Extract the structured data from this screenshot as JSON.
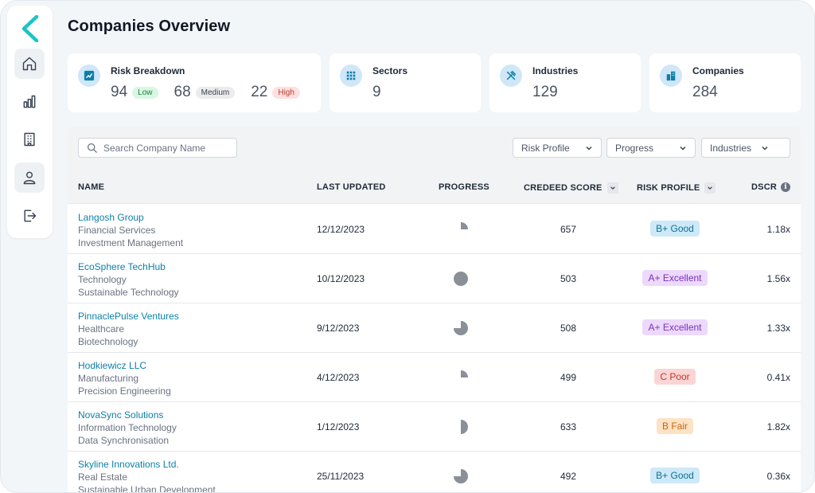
{
  "page": {
    "title": "Companies Overview"
  },
  "colors": {
    "accent": "#0e7fa8",
    "logo": "#1cc3c6",
    "icon_bg": "#cfe7f8"
  },
  "sidebar": {
    "items": [
      {
        "name": "home",
        "icon": "home-icon",
        "active": true
      },
      {
        "name": "analytics",
        "icon": "bar-chart-icon",
        "active": false
      },
      {
        "name": "companies",
        "icon": "building-icon",
        "active": false
      },
      {
        "name": "profile",
        "icon": "user-icon",
        "active": true
      },
      {
        "name": "logout",
        "icon": "logout-icon",
        "active": false
      }
    ]
  },
  "summary": {
    "risk": {
      "label": "Risk Breakdown",
      "low_count": "94",
      "low_label": "Low",
      "medium_count": "68",
      "medium_label": "Medium",
      "high_count": "22",
      "high_label": "High"
    },
    "sectors": {
      "label": "Sectors",
      "value": "9"
    },
    "industries": {
      "label": "Industries",
      "value": "129"
    },
    "companies": {
      "label": "Companies",
      "value": "284"
    }
  },
  "filters": {
    "search_placeholder": "Search Company Name",
    "risk_profile": "Risk Profile",
    "progress": "Progress",
    "industries": "Industries"
  },
  "table": {
    "columns": {
      "name": "NAME",
      "last_updated": "LAST UPDATED",
      "progress": "PROGRESS",
      "score": "CREDEED SCORE",
      "risk": "RISK PROFILE",
      "dscr": "DSCR"
    },
    "rows": [
      {
        "name": "Langosh Group",
        "sector": "Financial Services",
        "industry": "Investment Management",
        "last_updated": "12/12/2023",
        "progress": 0.25,
        "score": "657",
        "risk": "B+ Good",
        "risk_bg": "#cde9f7",
        "risk_fg": "#0e6f94",
        "dscr": "1.18x"
      },
      {
        "name": "EcoSphere TechHub",
        "sector": "Technology",
        "industry": "Sustainable Technology",
        "last_updated": "10/12/2023",
        "progress": 1.0,
        "score": "503",
        "risk": "A+ Excellent",
        "risk_bg": "#ecd9fb",
        "risk_fg": "#7b2fbf",
        "dscr": "1.56x"
      },
      {
        "name": "PinnaclePulse Ventures",
        "sector": "Healthcare",
        "industry": "Biotechnology",
        "last_updated": "9/12/2023",
        "progress": 0.75,
        "score": "508",
        "risk": "A+ Excellent",
        "risk_bg": "#ecd9fb",
        "risk_fg": "#7b2fbf",
        "dscr": "1.33x"
      },
      {
        "name": "Hodkiewicz LLC",
        "sector": "Manufacturing",
        "industry": "Precision Engineering",
        "last_updated": "4/12/2023",
        "progress": 0.25,
        "score": "499",
        "risk": "C Poor",
        "risk_bg": "#fbd5d5",
        "risk_fg": "#c0392b",
        "dscr": "0.41x"
      },
      {
        "name": "NovaSync Solutions",
        "sector": "Information Technology",
        "industry": "Data Synchronisation",
        "last_updated": "1/12/2023",
        "progress": 0.5,
        "score": "633",
        "risk": "B Fair",
        "risk_bg": "#fde2c4",
        "risk_fg": "#c46a12",
        "dscr": "1.82x"
      },
      {
        "name": "Skyline Innovations Ltd.",
        "sector": "Real Estate",
        "industry": "Sustainable Urban Development",
        "last_updated": "25/11/2023",
        "progress": 0.75,
        "score": "492",
        "risk": "B+ Good",
        "risk_bg": "#cde9f7",
        "risk_fg": "#0e6f94",
        "dscr": "0.36x"
      }
    ]
  }
}
